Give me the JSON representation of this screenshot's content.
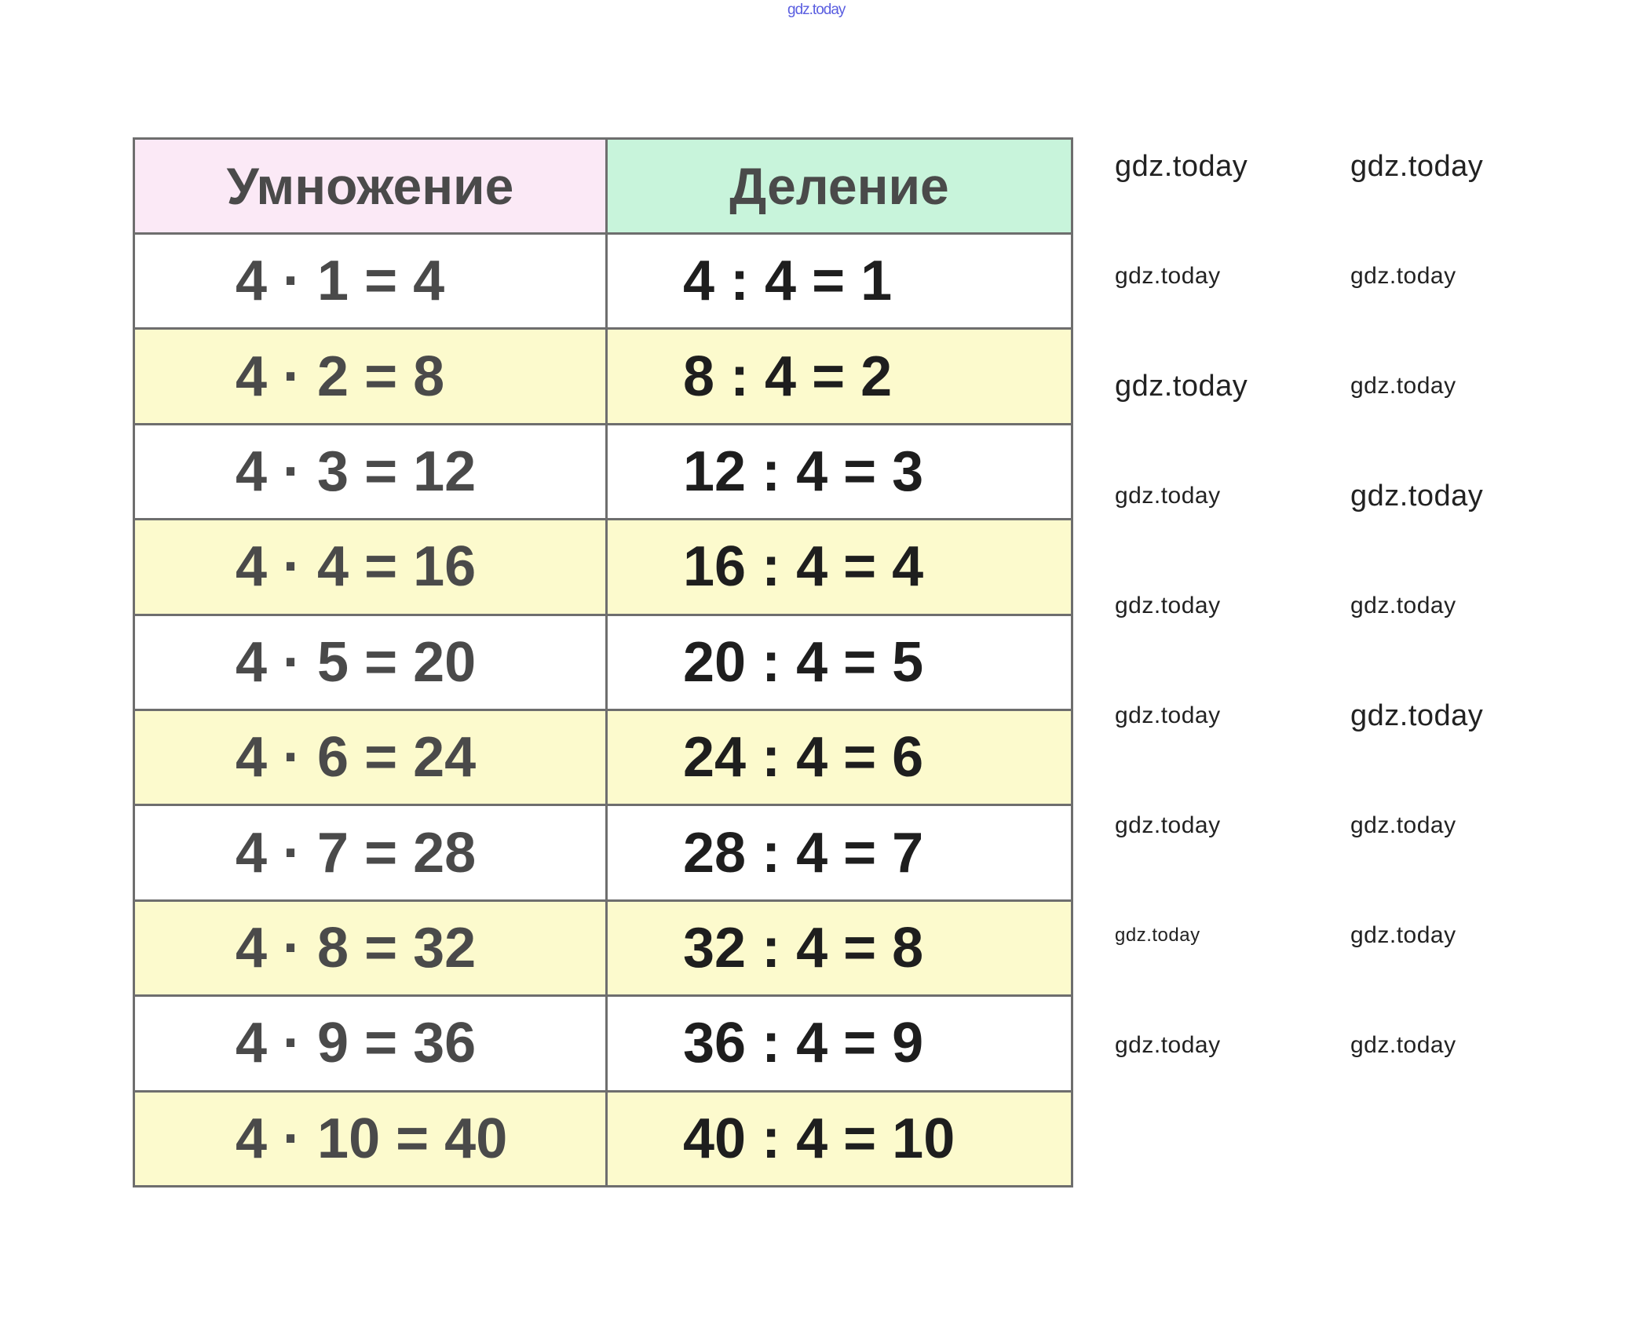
{
  "watermark": "gdz.today",
  "headers": {
    "multiplication": "Умножение",
    "division": "Деление"
  },
  "rows": [
    {
      "mul": "4 · 1 = 4",
      "div": "4 : 4 = 1"
    },
    {
      "mul": "4 · 2 = 8",
      "div": "8 : 4 = 2"
    },
    {
      "mul": "4 · 3 = 12",
      "div": "12 : 4 = 3"
    },
    {
      "mul": "4 · 4 = 16",
      "div": "16 : 4 = 4"
    },
    {
      "mul": "4 · 5 = 20",
      "div": "20 : 4 = 5"
    },
    {
      "mul": "4 · 6 = 24",
      "div": "24 : 4 = 6"
    },
    {
      "mul": "4 · 7 = 28",
      "div": "28 : 4 = 7"
    },
    {
      "mul": "4 · 8 = 32",
      "div": "32 : 4 = 8"
    },
    {
      "mul": "4 · 9 = 36",
      "div": "36 : 4 = 9"
    },
    {
      "mul": "4 · 10 = 40",
      "div": "40 : 4 = 10"
    }
  ],
  "colors": {
    "header_mul": "#fbe9f6",
    "header_div": "#c8f4db",
    "row_alt": "#fcfacd",
    "border": "#6e6e6e"
  }
}
